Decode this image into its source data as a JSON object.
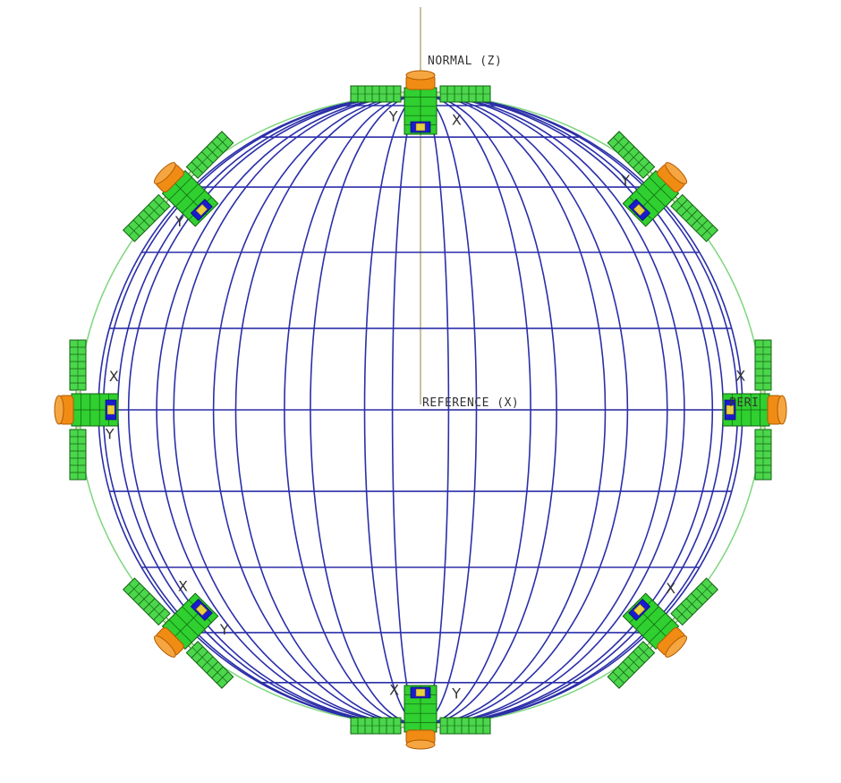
{
  "labels": {
    "normal_axis": "NORMAL (Z)",
    "reference_axis": "REFERENCE (X)",
    "perigee_partial": "PERI"
  },
  "satellites": [
    {
      "name": "top",
      "angle_deg": 90,
      "axis_letters": [
        "Y",
        "X"
      ]
    },
    {
      "name": "upper-right",
      "angle_deg": 45,
      "axis_letters": [
        "Y"
      ]
    },
    {
      "name": "right",
      "angle_deg": 0,
      "axis_letters": [
        "X"
      ]
    },
    {
      "name": "lower-right",
      "angle_deg": -45,
      "axis_letters": [
        "X"
      ]
    },
    {
      "name": "bottom",
      "angle_deg": -90,
      "axis_letters": [
        "Y",
        "X"
      ]
    },
    {
      "name": "lower-left",
      "angle_deg": -135,
      "axis_letters": [
        "Y",
        "X"
      ]
    },
    {
      "name": "left",
      "angle_deg": 180,
      "axis_letters": [
        "Y",
        "X"
      ]
    },
    {
      "name": "upper-left",
      "angle_deg": 135,
      "axis_letters": [
        "Y"
      ]
    }
  ],
  "colors": {
    "globe_grid": "#2b2fa8",
    "orbit": "#7ed67e",
    "axis_line": "#c8c0a0",
    "panel_fill": "#4bd64b",
    "panel_light": "#c8f0b0",
    "panel_line": "#106010",
    "body_fill": "#2fd02f",
    "engine": "#f08c14",
    "engine_dark": "#b35a00",
    "blue_part": "#1a1ad0"
  }
}
